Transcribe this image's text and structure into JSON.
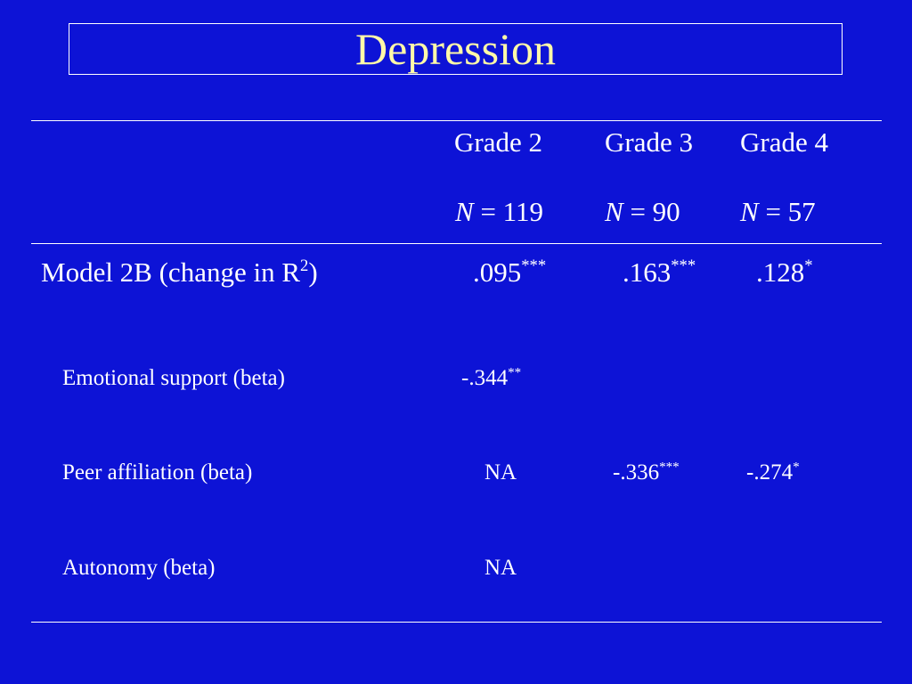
{
  "title": "Depression",
  "columns": [
    {
      "grade": "Grade 2",
      "n_label": "N",
      "n_eq": "= 119"
    },
    {
      "grade": "Grade 3",
      "n_label": "N",
      "n_eq": "= 90"
    },
    {
      "grade": "Grade 4",
      "n_label": "N",
      "n_eq": "= 57"
    }
  ],
  "model_row": {
    "label_pre": "Model 2B (change in R",
    "label_sup": "2",
    "label_post": ")",
    "values": [
      {
        "value": ".095",
        "sig": "***"
      },
      {
        "value": ".163",
        "sig": "***"
      },
      {
        "value": ".128",
        "sig": "*"
      }
    ]
  },
  "rows": [
    {
      "label": "Emotional support (beta)",
      "values": [
        {
          "value": "-.344",
          "sig": "**"
        }
      ]
    },
    {
      "label": "Peer affiliation (beta)",
      "values": [
        {
          "value": "NA",
          "sig": ""
        },
        {
          "value": "-.336",
          "sig": "***"
        },
        {
          "value": "-.274",
          "sig": "*"
        }
      ]
    },
    {
      "label": "Autonomy (beta)",
      "values": [
        {
          "value": "NA",
          "sig": ""
        }
      ]
    }
  ],
  "colors": {
    "background": "#0d13d6",
    "title": "#fff9a8",
    "text": "#ffffff"
  }
}
